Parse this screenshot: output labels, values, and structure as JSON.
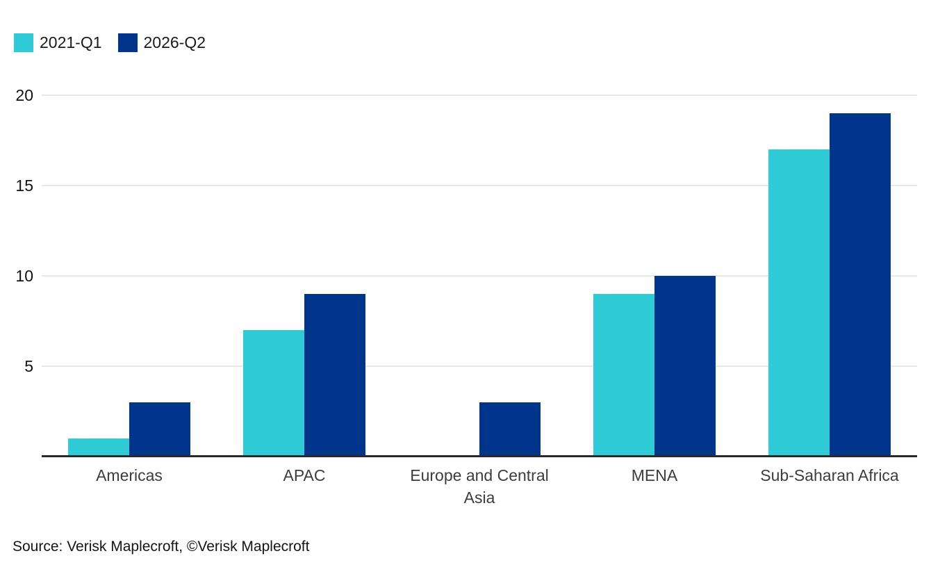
{
  "chart_data": {
    "type": "bar",
    "title": "",
    "xlabel": "",
    "ylabel": "",
    "categories": [
      "Americas",
      "APAC",
      "Europe and Central Asia",
      "MENA",
      "Sub-Saharan Africa"
    ],
    "series": [
      {
        "name": "2021-Q1",
        "color": "#2fccd8",
        "values": [
          1,
          7,
          0,
          9,
          17
        ]
      },
      {
        "name": "2026-Q2",
        "color": "#00358c",
        "values": [
          3,
          9,
          3,
          10,
          19
        ]
      }
    ],
    "ylim": [
      0,
      20
    ],
    "yticks": [
      5,
      10,
      15,
      20
    ],
    "grid": "horizontal",
    "legend_position": "top-left"
  },
  "colors": {
    "series_2021_q1": "#2fccd8",
    "series_2026_q2": "#00358c",
    "gridline": "#e7e7e7",
    "axis_line": "#2b2b2b",
    "background": "#ffffff"
  },
  "source_text": "Source: Verisk Maplecroft, ©Verisk Maplecroft"
}
